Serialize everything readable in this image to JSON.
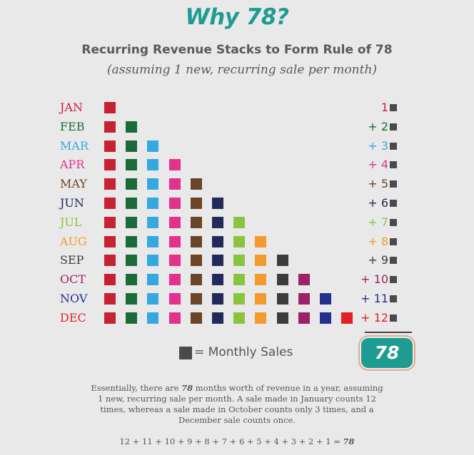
{
  "title": "Why 78?",
  "subtitle": "Recurring Revenue Stacks to Form Rule of 78",
  "subnote": "(assuming 1 new, recurring sale per month)",
  "months": [
    {
      "label": "JAN",
      "color": "#c62233",
      "count": "1"
    },
    {
      "label": "FEB",
      "color": "#1a6b38",
      "count": "+ 2"
    },
    {
      "label": "MAR",
      "color": "#35a8df",
      "count": "+ 3"
    },
    {
      "label": "APR",
      "color": "#e3318d",
      "count": "+ 4"
    },
    {
      "label": "MAY",
      "color": "#6b4528",
      "count": "+ 5"
    },
    {
      "label": "JUN",
      "color": "#222a5c",
      "count": "+ 6"
    },
    {
      "label": "JUL",
      "color": "#8ac43f",
      "count": "+ 7"
    },
    {
      "label": "AUG",
      "color": "#f39a2d",
      "count": "+ 8"
    },
    {
      "label": "SEP",
      "color": "#3c3c3e",
      "count": "+ 9"
    },
    {
      "label": "OCT",
      "color": "#9b2266",
      "count": "+ 10"
    },
    {
      "label": "NOV",
      "color": "#24308e",
      "count": "+ 11"
    },
    {
      "label": "DEC",
      "color": "#e22127",
      "count": "+ 12"
    }
  ],
  "total": "78",
  "legend_label": "= Monthly Sales",
  "explain": {
    "before": "Essentially, there are ",
    "number": "78",
    "after": " months worth of revenue in a year, assuming 1 new, recurring sale per month. A sale made in January counts 12 times, whereas a sale made in October counts only 3 times, and a December sale counts once."
  },
  "equation": {
    "expr": "12 + 11 + 10 + 9 + 8 + 7 + 6 + 5 + 4 + 3 + 2 + 1 = ",
    "result": "78"
  }
}
